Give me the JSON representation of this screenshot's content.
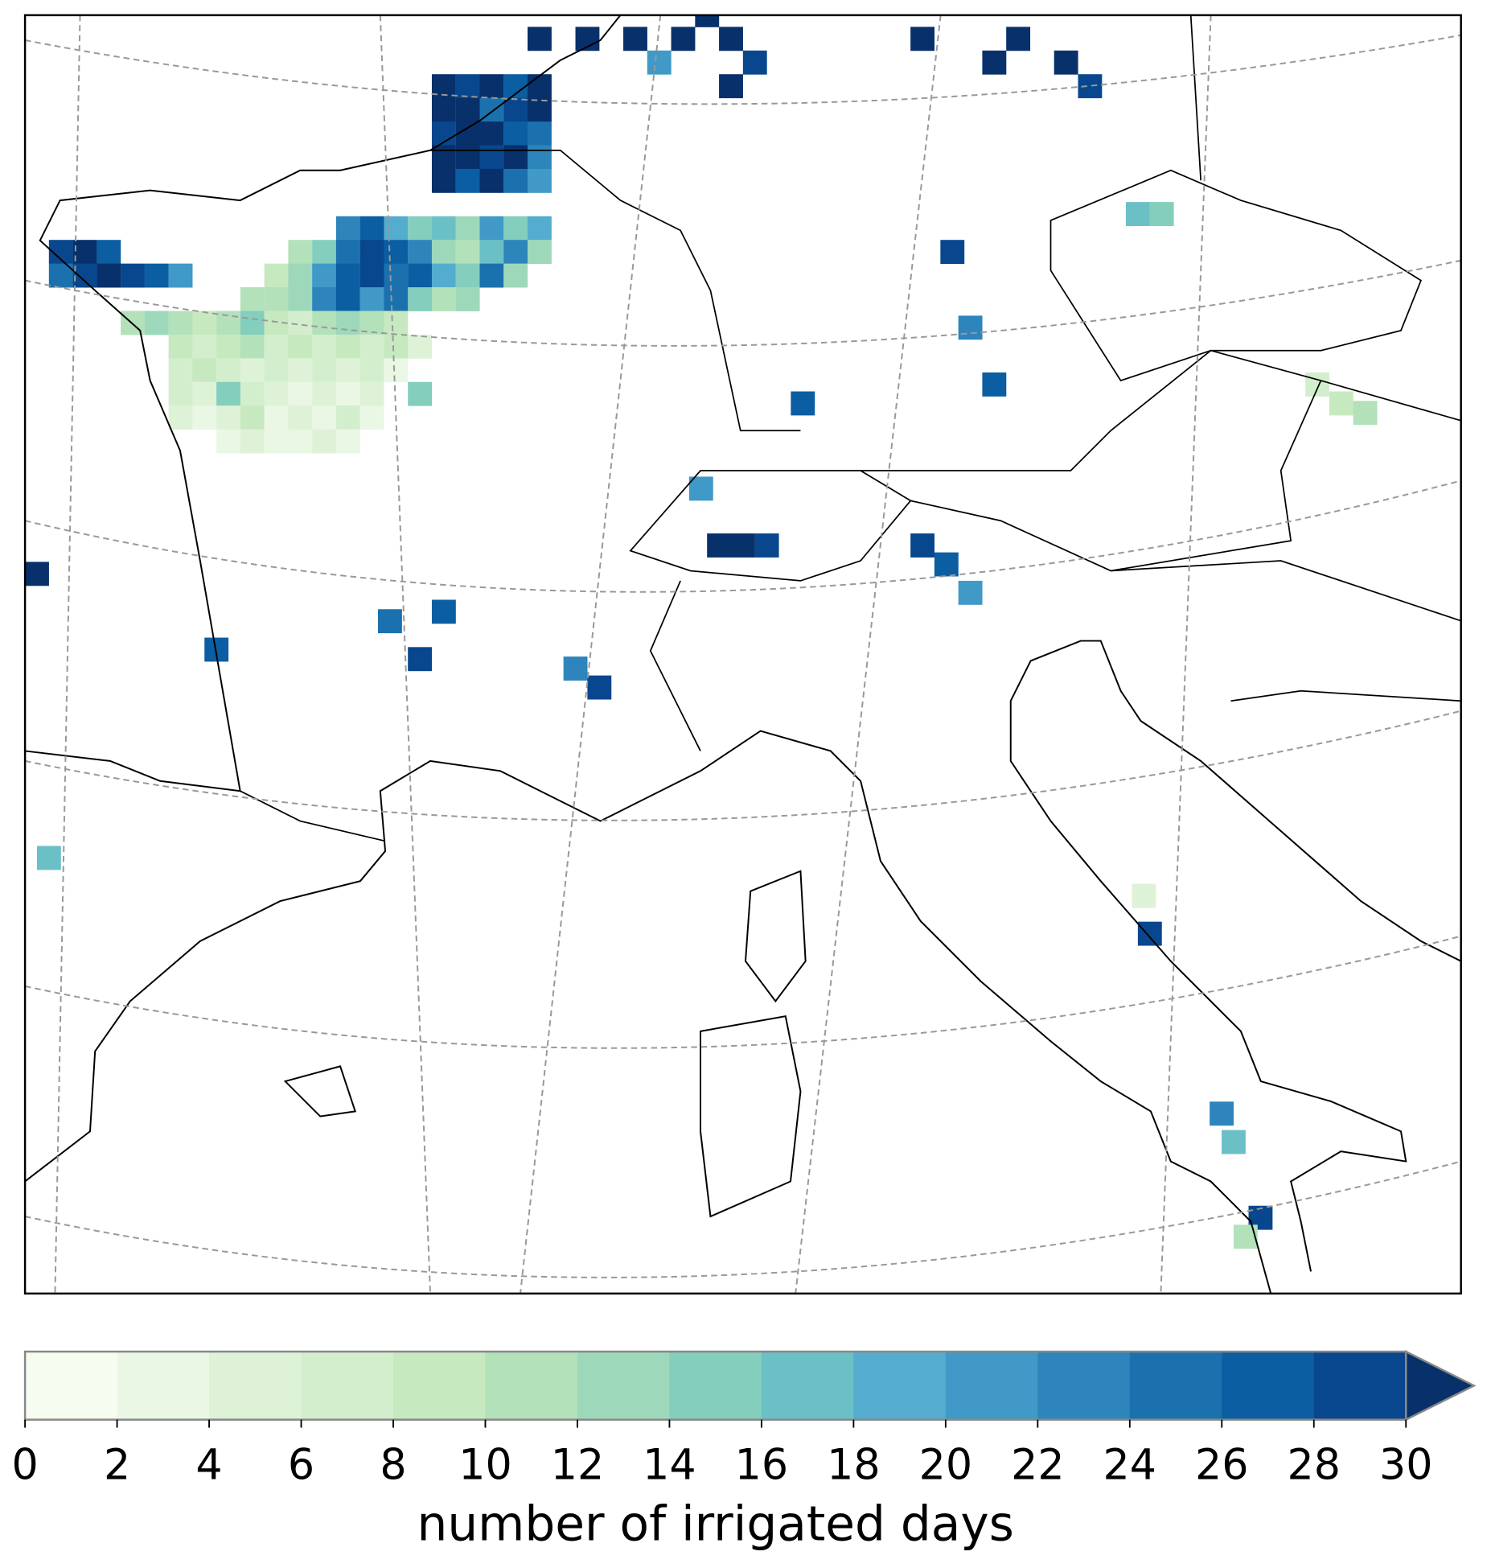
{
  "chart_data": {
    "type": "gridmap",
    "lonlim": [
      -5,
      19
    ],
    "latlim": [
      38,
      51.5
    ],
    "colorbar": {
      "label": "number of irrigated days",
      "ticks": [
        0,
        2,
        4,
        6,
        8,
        10,
        12,
        14,
        16,
        18,
        20,
        22,
        24,
        26,
        28,
        30
      ],
      "colors": [
        "#f7fcf0",
        "#eaf7e4",
        "#def2d8",
        "#d3eecd",
        "#c7e9c0",
        "#b3e1ba",
        "#9ed8bb",
        "#84cebd",
        "#6bc0c6",
        "#54adcf",
        "#4099c6",
        "#2d85bb",
        "#1b71ae",
        "#0b5ea2",
        "#08478d",
        "#08306b"
      ],
      "extend": "max"
    },
    "cells": [
      [
        2.0,
        50.75,
        30
      ],
      [
        2.4,
        50.75,
        28
      ],
      [
        2.8,
        50.75,
        30
      ],
      [
        3.2,
        50.75,
        26
      ],
      [
        3.6,
        50.75,
        30
      ],
      [
        2.0,
        50.5,
        30
      ],
      [
        2.4,
        50.5,
        30
      ],
      [
        2.8,
        50.5,
        24
      ],
      [
        3.2,
        50.5,
        28
      ],
      [
        3.6,
        50.5,
        30
      ],
      [
        2.0,
        50.25,
        28
      ],
      [
        2.4,
        50.25,
        30
      ],
      [
        2.8,
        50.25,
        30
      ],
      [
        3.2,
        50.25,
        26
      ],
      [
        3.6,
        50.25,
        24
      ],
      [
        2.0,
        50.0,
        30
      ],
      [
        2.4,
        50.0,
        30
      ],
      [
        2.8,
        50.0,
        28
      ],
      [
        3.2,
        50.0,
        30
      ],
      [
        3.6,
        50.0,
        22
      ],
      [
        2.0,
        49.75,
        30
      ],
      [
        2.4,
        49.75,
        26
      ],
      [
        2.8,
        49.75,
        30
      ],
      [
        3.2,
        49.75,
        24
      ],
      [
        3.6,
        49.75,
        20
      ],
      [
        3.6,
        51.25,
        30
      ],
      [
        4.4,
        51.25,
        30
      ],
      [
        5.2,
        51.25,
        30
      ],
      [
        6.0,
        51.25,
        30
      ],
      [
        6.4,
        51.5,
        30
      ],
      [
        6.8,
        51.25,
        30
      ],
      [
        7.2,
        51.0,
        28
      ],
      [
        6.8,
        50.75,
        30
      ],
      [
        5.6,
        51.0,
        20
      ],
      [
        11.2,
        51.0,
        30
      ],
      [
        11.6,
        51.25,
        30
      ],
      [
        12.4,
        51.0,
        30
      ],
      [
        12.8,
        50.75,
        28
      ],
      [
        10.0,
        51.25,
        30
      ],
      [
        0.4,
        49.25,
        22
      ],
      [
        0.8,
        49.25,
        26
      ],
      [
        1.2,
        49.25,
        18
      ],
      [
        1.6,
        49.25,
        14
      ],
      [
        2.0,
        49.25,
        16
      ],
      [
        2.4,
        49.25,
        12
      ],
      [
        2.8,
        49.25,
        20
      ],
      [
        3.2,
        49.25,
        14
      ],
      [
        3.6,
        49.25,
        18
      ],
      [
        -0.4,
        49.0,
        10
      ],
      [
        0.0,
        49.0,
        14
      ],
      [
        0.4,
        49.0,
        24
      ],
      [
        0.8,
        49.0,
        28
      ],
      [
        1.2,
        49.0,
        26
      ],
      [
        1.6,
        49.0,
        22
      ],
      [
        2.0,
        49.0,
        12
      ],
      [
        2.4,
        49.0,
        10
      ],
      [
        2.8,
        49.0,
        16
      ],
      [
        3.2,
        49.0,
        22
      ],
      [
        3.6,
        49.0,
        12
      ],
      [
        -0.8,
        48.75,
        8
      ],
      [
        -0.4,
        48.75,
        12
      ],
      [
        0.0,
        48.75,
        20
      ],
      [
        0.4,
        48.75,
        26
      ],
      [
        0.8,
        48.75,
        28
      ],
      [
        1.2,
        48.75,
        24
      ],
      [
        1.6,
        48.75,
        26
      ],
      [
        2.0,
        48.75,
        18
      ],
      [
        2.4,
        48.75,
        14
      ],
      [
        2.8,
        48.75,
        24
      ],
      [
        3.2,
        48.75,
        12
      ],
      [
        -1.2,
        48.5,
        10
      ],
      [
        -0.8,
        48.5,
        10
      ],
      [
        -0.4,
        48.5,
        12
      ],
      [
        0.0,
        48.5,
        22
      ],
      [
        0.4,
        48.5,
        26
      ],
      [
        0.8,
        48.5,
        20
      ],
      [
        1.2,
        48.5,
        24
      ],
      [
        1.6,
        48.5,
        14
      ],
      [
        2.0,
        48.5,
        10
      ],
      [
        2.4,
        48.5,
        12
      ],
      [
        -4.4,
        49.0,
        28
      ],
      [
        -4.0,
        49.0,
        30
      ],
      [
        -3.6,
        49.0,
        26
      ],
      [
        -4.4,
        48.75,
        24
      ],
      [
        -4.0,
        48.75,
        28
      ],
      [
        -3.6,
        48.75,
        30
      ],
      [
        -3.2,
        48.75,
        28
      ],
      [
        -2.8,
        48.75,
        26
      ],
      [
        -2.4,
        48.75,
        20
      ],
      [
        -3.2,
        48.25,
        10
      ],
      [
        -2.8,
        48.25,
        12
      ],
      [
        -2.4,
        48.25,
        10
      ],
      [
        -2.0,
        48.25,
        8
      ],
      [
        -1.6,
        48.25,
        10
      ],
      [
        -1.2,
        48.25,
        14
      ],
      [
        -0.8,
        48.25,
        8
      ],
      [
        -0.4,
        48.25,
        6
      ],
      [
        0.0,
        48.25,
        10
      ],
      [
        0.4,
        48.25,
        12
      ],
      [
        0.8,
        48.25,
        10
      ],
      [
        1.2,
        48.25,
        8
      ],
      [
        -2.4,
        48.0,
        8
      ],
      [
        -2.0,
        48.0,
        6
      ],
      [
        -1.6,
        48.0,
        8
      ],
      [
        -1.2,
        48.0,
        10
      ],
      [
        -0.8,
        48.0,
        6
      ],
      [
        -0.4,
        48.0,
        8
      ],
      [
        0.0,
        48.0,
        6
      ],
      [
        0.4,
        48.0,
        8
      ],
      [
        0.8,
        48.0,
        6
      ],
      [
        1.2,
        48.0,
        8
      ],
      [
        1.6,
        48.0,
        4
      ],
      [
        -2.4,
        47.75,
        6
      ],
      [
        -2.0,
        47.75,
        8
      ],
      [
        -1.6,
        47.75,
        6
      ],
      [
        -1.2,
        47.75,
        4
      ],
      [
        -0.8,
        47.75,
        6
      ],
      [
        -0.4,
        47.75,
        4
      ],
      [
        0.0,
        47.75,
        6
      ],
      [
        0.4,
        47.75,
        4
      ],
      [
        0.8,
        47.75,
        6
      ],
      [
        1.2,
        47.75,
        2
      ],
      [
        -2.4,
        47.5,
        6
      ],
      [
        -2.0,
        47.5,
        4
      ],
      [
        -1.6,
        47.5,
        14
      ],
      [
        -1.2,
        47.5,
        6
      ],
      [
        -0.8,
        47.5,
        4
      ],
      [
        -0.4,
        47.5,
        2
      ],
      [
        0.0,
        47.5,
        4
      ],
      [
        0.4,
        47.5,
        2
      ],
      [
        0.8,
        47.5,
        4
      ],
      [
        1.6,
        47.5,
        14
      ],
      [
        -2.4,
        47.25,
        4
      ],
      [
        -2.0,
        47.25,
        2
      ],
      [
        -1.6,
        47.25,
        4
      ],
      [
        -1.2,
        47.25,
        8
      ],
      [
        -0.8,
        47.25,
        2
      ],
      [
        -0.4,
        47.25,
        4
      ],
      [
        0.0,
        47.25,
        2
      ],
      [
        0.4,
        47.25,
        6
      ],
      [
        0.8,
        47.25,
        2
      ],
      [
        -1.6,
        47.0,
        2
      ],
      [
        -1.2,
        47.0,
        4
      ],
      [
        -0.8,
        47.0,
        2
      ],
      [
        -0.4,
        47.0,
        2
      ],
      [
        0.0,
        47.0,
        4
      ],
      [
        0.4,
        47.0,
        2
      ],
      [
        -4.8,
        45.6,
        30
      ],
      [
        -4.6,
        42.6,
        16
      ],
      [
        -1.8,
        44.8,
        26
      ],
      [
        1.1,
        45.1,
        24
      ],
      [
        1.6,
        44.7,
        28
      ],
      [
        2.0,
        45.2,
        26
      ],
      [
        4.6,
        44.4,
        28
      ],
      [
        4.2,
        44.6,
        22
      ],
      [
        6.3,
        46.5,
        20
      ],
      [
        6.6,
        45.9,
        30
      ],
      [
        7.0,
        45.9,
        30
      ],
      [
        7.4,
        45.9,
        28
      ],
      [
        8.0,
        47.4,
        26
      ],
      [
        10.0,
        45.9,
        28
      ],
      [
        10.4,
        45.7,
        26
      ],
      [
        10.8,
        45.4,
        20
      ],
      [
        10.5,
        49.0,
        28
      ],
      [
        10.8,
        48.2,
        22
      ],
      [
        11.2,
        47.6,
        26
      ],
      [
        13.6,
        49.4,
        16
      ],
      [
        14.0,
        49.4,
        14
      ],
      [
        17.0,
        47.4,
        8
      ],
      [
        17.4,
        47.3,
        10
      ],
      [
        16.6,
        47.6,
        6
      ],
      [
        15.0,
        39.9,
        22
      ],
      [
        15.2,
        39.6,
        16
      ],
      [
        15.65,
        38.8,
        28
      ],
      [
        15.4,
        38.6,
        10
      ],
      [
        13.8,
        41.8,
        28
      ],
      [
        13.7,
        42.2,
        4
      ]
    ]
  }
}
